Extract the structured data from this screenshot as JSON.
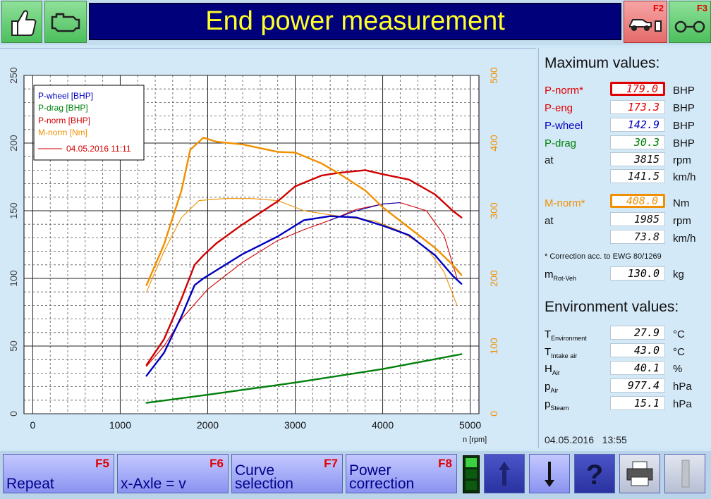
{
  "header": {
    "title": "End power measurement",
    "left_buttons": [
      {
        "icon": "thumbs-up-icon"
      },
      {
        "icon": "engine-icon"
      }
    ],
    "right_buttons": [
      {
        "key": "F2",
        "icon": "car-dyno-icon"
      },
      {
        "key": "F3",
        "icon": "rollers-icon"
      }
    ]
  },
  "chart_data": {
    "type": "line",
    "xlabel": "n [rpm]",
    "xlim": [
      -100,
      5100
    ],
    "xticks": [
      0,
      1000,
      2000,
      3000,
      4000,
      5000
    ],
    "ylim_left": [
      0,
      250
    ],
    "yticks_left": [
      0,
      50,
      100,
      150,
      200,
      250
    ],
    "ylim_right": [
      0,
      500
    ],
    "yticks_right": [
      0,
      100,
      200,
      300,
      400,
      500
    ],
    "grid": true,
    "legend_position": "top-left",
    "legend_date": "04.05.2016 11:11",
    "series": [
      {
        "name": "P-wheel [BHP]",
        "color": "#0000c0",
        "axis": "left",
        "style": "thick",
        "x": [
          1300,
          1500,
          1700,
          1850,
          1950,
          2100,
          2400,
          2800,
          3100,
          3400,
          3700,
          4000,
          4300,
          4600,
          4800,
          4900
        ],
        "y": [
          28,
          45,
          72,
          95,
          100,
          106,
          118,
          131,
          143,
          146,
          145,
          139,
          132,
          117,
          102,
          96
        ]
      },
      {
        "name": "P-drag [BHP]",
        "color": "#00800a",
        "axis": "left",
        "style": "thick",
        "x": [
          1300,
          2000,
          3000,
          4000,
          4900
        ],
        "y": [
          8,
          14,
          23,
          33,
          44
        ]
      },
      {
        "name": "P-norm [BHP]",
        "color": "#d00000",
        "axis": "left",
        "style": "thick",
        "x": [
          1300,
          1500,
          1700,
          1850,
          1950,
          2100,
          2400,
          2800,
          3000,
          3300,
          3500,
          3800,
          4000,
          4300,
          4600,
          4800,
          4900
        ],
        "y": [
          36,
          55,
          85,
          110,
          117,
          126,
          140,
          157,
          168,
          176,
          178,
          180,
          177,
          173,
          162,
          150,
          145
        ]
      },
      {
        "name": "M-norm [Nm]",
        "color": "#f09000",
        "axis": "right",
        "style": "thick",
        "x": [
          1300,
          1500,
          1700,
          1800,
          1950,
          2100,
          2400,
          2800,
          3000,
          3300,
          3500,
          3800,
          4000,
          4300,
          4600,
          4800,
          4900
        ],
        "y": [
          190,
          250,
          330,
          390,
          408,
          402,
          398,
          387,
          386,
          370,
          355,
          330,
          305,
          275,
          245,
          220,
          205
        ]
      },
      {
        "name": "P-norm 04.05.2016 11:11",
        "color": "#d00000",
        "axis": "left",
        "style": "thin",
        "x": [
          1300,
          1500,
          1700,
          2000,
          2400,
          2800,
          3100,
          3400,
          3700,
          4000,
          4200,
          4500,
          4700,
          4850
        ],
        "y": [
          35,
          50,
          70,
          92,
          112,
          128,
          136,
          143,
          151,
          155,
          156,
          150,
          132,
          100
        ]
      },
      {
        "name": "P-wheel 04.05.2016 11:11",
        "color": "#0000c0",
        "axis": "left",
        "style": "thin",
        "x": [
          3400,
          3700,
          4000,
          4200
        ],
        "y": [
          143,
          150,
          155,
          156
        ]
      },
      {
        "name": "M-norm 04.05.2016 11:11",
        "color": "#f09000",
        "axis": "right",
        "style": "thin",
        "x": [
          1300,
          1500,
          1700,
          1900,
          2200,
          2500,
          2800,
          3100,
          3500,
          3900,
          4200,
          4500,
          4700,
          4850
        ],
        "y": [
          180,
          240,
          290,
          315,
          318,
          318,
          315,
          300,
          292,
          285,
          270,
          245,
          210,
          160
        ]
      }
    ]
  },
  "max_values": {
    "title": "Maximum values:",
    "rows": [
      {
        "label": "P-norm*",
        "value": "179.0",
        "unit": "BHP",
        "label_color": "#e00000",
        "value_color": "#e00000",
        "highlight": "#e00000"
      },
      {
        "label": "P-eng",
        "value": "173.3",
        "unit": "BHP",
        "label_color": "#e00000",
        "value_color": "#e00000"
      },
      {
        "label": "P-wheel",
        "value": "142.9",
        "unit": "BHP",
        "label_color": "#0000c0",
        "value_color": "#0000c0"
      },
      {
        "label": "P-drag",
        "value": "30.3",
        "unit": "BHP",
        "label_color": "#00800a",
        "value_color": "#00800a"
      },
      {
        "label": "at",
        "value": "3815",
        "unit": "rpm",
        "label_color": "#111111",
        "value_color": "#111111"
      },
      {
        "label": "",
        "value": "141.5",
        "unit": "km/h",
        "label_color": "#111111",
        "value_color": "#111111"
      }
    ],
    "torque_rows": [
      {
        "label": "M-norm*",
        "value": "408.0",
        "unit": "Nm",
        "label_color": "#f09000",
        "value_color": "#f09000",
        "highlight": "#f09000"
      },
      {
        "label": "at",
        "value": "1985",
        "unit": "rpm",
        "label_color": "#111111",
        "value_color": "#111111"
      },
      {
        "label": "",
        "value": "73.8",
        "unit": "km/h",
        "label_color": "#111111",
        "value_color": "#111111"
      }
    ],
    "correction_note": "* Correction acc. to EWG 80/1269",
    "mass": {
      "label_main": "m",
      "label_sub": "Rot-Veh",
      "value": "130.0",
      "unit": "kg"
    }
  },
  "environment": {
    "title": "Environment values:",
    "rows": [
      {
        "label_main": "T",
        "label_sub": "Environment",
        "value": "27.9",
        "unit": "°C"
      },
      {
        "label_main": "T",
        "label_sub": "Intake air",
        "value": "43.0",
        "unit": "°C"
      },
      {
        "label_main": "H",
        "label_sub": "Air",
        "value": "40.1",
        "unit": "%"
      },
      {
        "label_main": "p",
        "label_sub": "Air",
        "value": "977.4",
        "unit": "hPa"
      },
      {
        "label_main": "p",
        "label_sub": "Steam",
        "value": "15.1",
        "unit": "hPa"
      }
    ]
  },
  "timestamp": {
    "date": "04.05.2016",
    "time": "13:55"
  },
  "footer": {
    "buttons": [
      {
        "label": "Repeat",
        "key": "F5"
      },
      {
        "label": "x-Axle = v",
        "key": "F6"
      },
      {
        "label": "Curve selection",
        "key": "F7"
      },
      {
        "label": "Power correction",
        "key": "F8"
      }
    ],
    "icon_buttons": [
      {
        "icon": "arrow-up-icon"
      },
      {
        "icon": "arrow-down-icon"
      },
      {
        "icon": "help-icon"
      },
      {
        "icon": "printer-icon"
      },
      {
        "icon": "disabled-button-icon"
      }
    ]
  }
}
